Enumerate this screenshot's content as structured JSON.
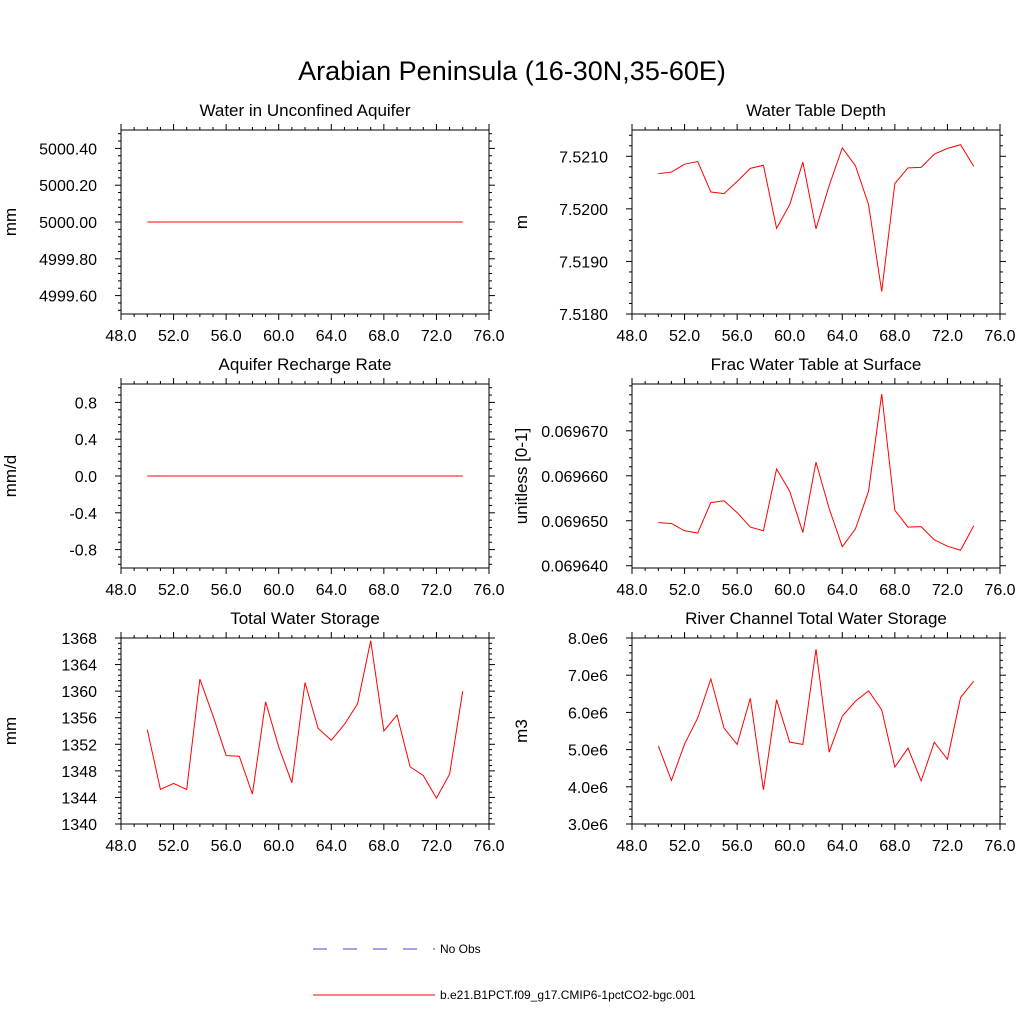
{
  "figure": {
    "title": "Arabian Peninsula (16-30N,35-60E)"
  },
  "legend": {
    "entries": [
      {
        "label": "No Obs",
        "color": "#4444cc",
        "style": "dashed"
      },
      {
        "label": "b.e21.B1PCT.f09_g17.CMIP6-1pctCO2-bgc.001",
        "color": "#ff0000",
        "style": "solid"
      }
    ]
  },
  "chart_data": [
    {
      "type": "line",
      "title": "Water in Unconfined Aquifer",
      "xlabel": "",
      "ylabel": "mm",
      "xlim": [
        48,
        76
      ],
      "ylim": [
        4999.5,
        5000.5
      ],
      "xticks": [
        48,
        52,
        56,
        60,
        64,
        68,
        72,
        76
      ],
      "xtick_labels": [
        "48.0",
        "52.0",
        "56.0",
        "60.0",
        "64.0",
        "68.0",
        "72.0",
        "76.0"
      ],
      "yticks": [
        4999.6,
        4999.8,
        5000.0,
        5000.2,
        5000.4
      ],
      "ytick_labels": [
        "4999.60",
        "4999.80",
        "5000.00",
        "5000.20",
        "5000.40"
      ],
      "x": [
        50,
        74
      ],
      "series": [
        {
          "color": "#ff0000",
          "values": [
            5000.0,
            5000.0
          ]
        }
      ]
    },
    {
      "type": "line",
      "title": "Water Table Depth",
      "xlabel": "",
      "ylabel": "m",
      "xlim": [
        48,
        76
      ],
      "ylim": [
        7.518,
        7.5215
      ],
      "xticks": [
        48,
        52,
        56,
        60,
        64,
        68,
        72,
        76
      ],
      "xtick_labels": [
        "48.0",
        "52.0",
        "56.0",
        "60.0",
        "64.0",
        "68.0",
        "72.0",
        "76.0"
      ],
      "yticks": [
        7.518,
        7.519,
        7.52,
        7.521
      ],
      "ytick_labels": [
        "7.5180",
        "7.5190",
        "7.5200",
        "7.5210"
      ],
      "x": [
        50,
        51,
        52,
        53,
        54,
        55,
        56,
        57,
        58,
        59,
        60,
        61,
        62,
        63,
        64,
        65,
        66,
        67,
        68,
        69,
        70,
        71,
        72,
        73,
        74
      ],
      "series": [
        {
          "color": "#ff0000",
          "values": [
            7.52067,
            7.5207,
            7.52085,
            7.5209,
            7.52032,
            7.52029,
            7.52052,
            7.52077,
            7.52083,
            7.51963,
            7.52008,
            7.52089,
            7.51962,
            7.52044,
            7.52116,
            7.52082,
            7.52008,
            7.51843,
            7.52048,
            7.52078,
            7.52079,
            7.52104,
            7.52115,
            7.52122,
            7.52081
          ]
        }
      ]
    },
    {
      "type": "line",
      "title": "Aquifer Recharge Rate",
      "xlabel": "",
      "ylabel": "mm/d",
      "xlim": [
        48,
        76
      ],
      "ylim": [
        -1.0,
        1.0
      ],
      "xticks": [
        48,
        52,
        56,
        60,
        64,
        68,
        72,
        76
      ],
      "xtick_labels": [
        "48.0",
        "52.0",
        "56.0",
        "60.0",
        "64.0",
        "68.0",
        "72.0",
        "76.0"
      ],
      "yticks": [
        -0.8,
        -0.4,
        0.0,
        0.4,
        0.8
      ],
      "ytick_labels": [
        "-0.8",
        "-0.4",
        "0.0",
        "0.4",
        "0.8"
      ],
      "x": [
        50,
        74
      ],
      "series": [
        {
          "color": "#ff0000",
          "values": [
            0.0,
            0.0
          ]
        }
      ]
    },
    {
      "type": "line",
      "title": "Frac Water Table at Surface",
      "xlabel": "",
      "ylabel": "unitless [0-1]",
      "xlim": [
        48,
        76
      ],
      "ylim": [
        0.0696395,
        0.06968
      ],
      "xticks": [
        48,
        52,
        56,
        60,
        64,
        68,
        72,
        76
      ],
      "xtick_labels": [
        "48.0",
        "52.0",
        "56.0",
        "60.0",
        "64.0",
        "68.0",
        "72.0",
        "76.0"
      ],
      "yticks": [
        0.06964,
        0.0696499,
        0.0696598,
        0.0696697
      ],
      "ytick_labels": [
        "0.069640",
        "0.069650",
        "0.069660",
        "0.069670"
      ],
      "x": [
        50,
        51,
        52,
        53,
        54,
        55,
        56,
        57,
        58,
        59,
        60,
        61,
        62,
        63,
        64,
        65,
        66,
        67,
        68,
        69,
        70,
        71,
        72,
        73,
        74
      ],
      "series": [
        {
          "color": "#ff0000",
          "values": [
            0.0696495,
            0.0696493,
            0.0696477,
            0.0696472,
            0.0696539,
            0.0696543,
            0.0696517,
            0.0696485,
            0.0696477,
            0.0696613,
            0.0696564,
            0.0696473,
            0.0696628,
            0.0696526,
            0.0696442,
            0.0696481,
            0.0696564,
            0.0696778,
            0.0696522,
            0.0696485,
            0.0696486,
            0.0696457,
            0.0696443,
            0.0696434,
            0.0696488
          ]
        }
      ]
    },
    {
      "type": "line",
      "title": "Total Water Storage",
      "xlabel": "",
      "ylabel": "mm",
      "xlim": [
        48,
        76
      ],
      "ylim": [
        1340,
        1368
      ],
      "xticks": [
        48,
        52,
        56,
        60,
        64,
        68,
        72,
        76
      ],
      "xtick_labels": [
        "48.0",
        "52.0",
        "56.0",
        "60.0",
        "64.0",
        "68.0",
        "72.0",
        "76.0"
      ],
      "yticks": [
        1340,
        1344,
        1348,
        1352,
        1356,
        1360,
        1364,
        1368
      ],
      "ytick_labels": [
        "1340",
        "1344",
        "1348",
        "1352",
        "1356",
        "1360",
        "1364",
        "1368"
      ],
      "x": [
        50,
        51,
        52,
        53,
        54,
        55,
        56,
        57,
        58,
        59,
        60,
        61,
        62,
        63,
        64,
        65,
        66,
        67,
        68,
        69,
        70,
        71,
        72,
        73,
        74
      ],
      "series": [
        {
          "color": "#ff0000",
          "values": [
            1354.2,
            1345.2,
            1346.1,
            1345.2,
            1361.8,
            1356.3,
            1350.3,
            1350.2,
            1344.5,
            1358.4,
            1351.6,
            1346.2,
            1361.3,
            1354.4,
            1352.6,
            1355.0,
            1358.1,
            1367.6,
            1354.0,
            1356.4,
            1348.6,
            1347.3,
            1343.9,
            1347.5,
            1360.0
          ]
        }
      ]
    },
    {
      "type": "line",
      "title": "River Channel Total Water Storage",
      "xlabel": "",
      "ylabel": "m3",
      "xlim": [
        48,
        76
      ],
      "ylim": [
        3000000,
        8000000
      ],
      "xticks": [
        48,
        52,
        56,
        60,
        64,
        68,
        72,
        76
      ],
      "xtick_labels": [
        "48.0",
        "52.0",
        "56.0",
        "60.0",
        "64.0",
        "68.0",
        "72.0",
        "76.0"
      ],
      "yticks": [
        3000000,
        4000000,
        5000000,
        6000000,
        7000000,
        8000000
      ],
      "ytick_labels": [
        "3.0e6",
        "4.0e6",
        "5.0e6",
        "6.0e6",
        "7.0e6",
        "8.0e6"
      ],
      "x": [
        50,
        51,
        52,
        53,
        54,
        55,
        56,
        57,
        58,
        59,
        60,
        61,
        62,
        63,
        64,
        65,
        66,
        67,
        68,
        69,
        70,
        71,
        72,
        73,
        74
      ],
      "series": [
        {
          "color": "#ff0000",
          "values": [
            5100000,
            4170000,
            5150000,
            5850000,
            6900000,
            5580000,
            5140000,
            6380000,
            3920000,
            6340000,
            5200000,
            5140000,
            7700000,
            4930000,
            5900000,
            6300000,
            6580000,
            6070000,
            4530000,
            5040000,
            4160000,
            5200000,
            4740000,
            6400000,
            6840000
          ]
        }
      ]
    }
  ]
}
